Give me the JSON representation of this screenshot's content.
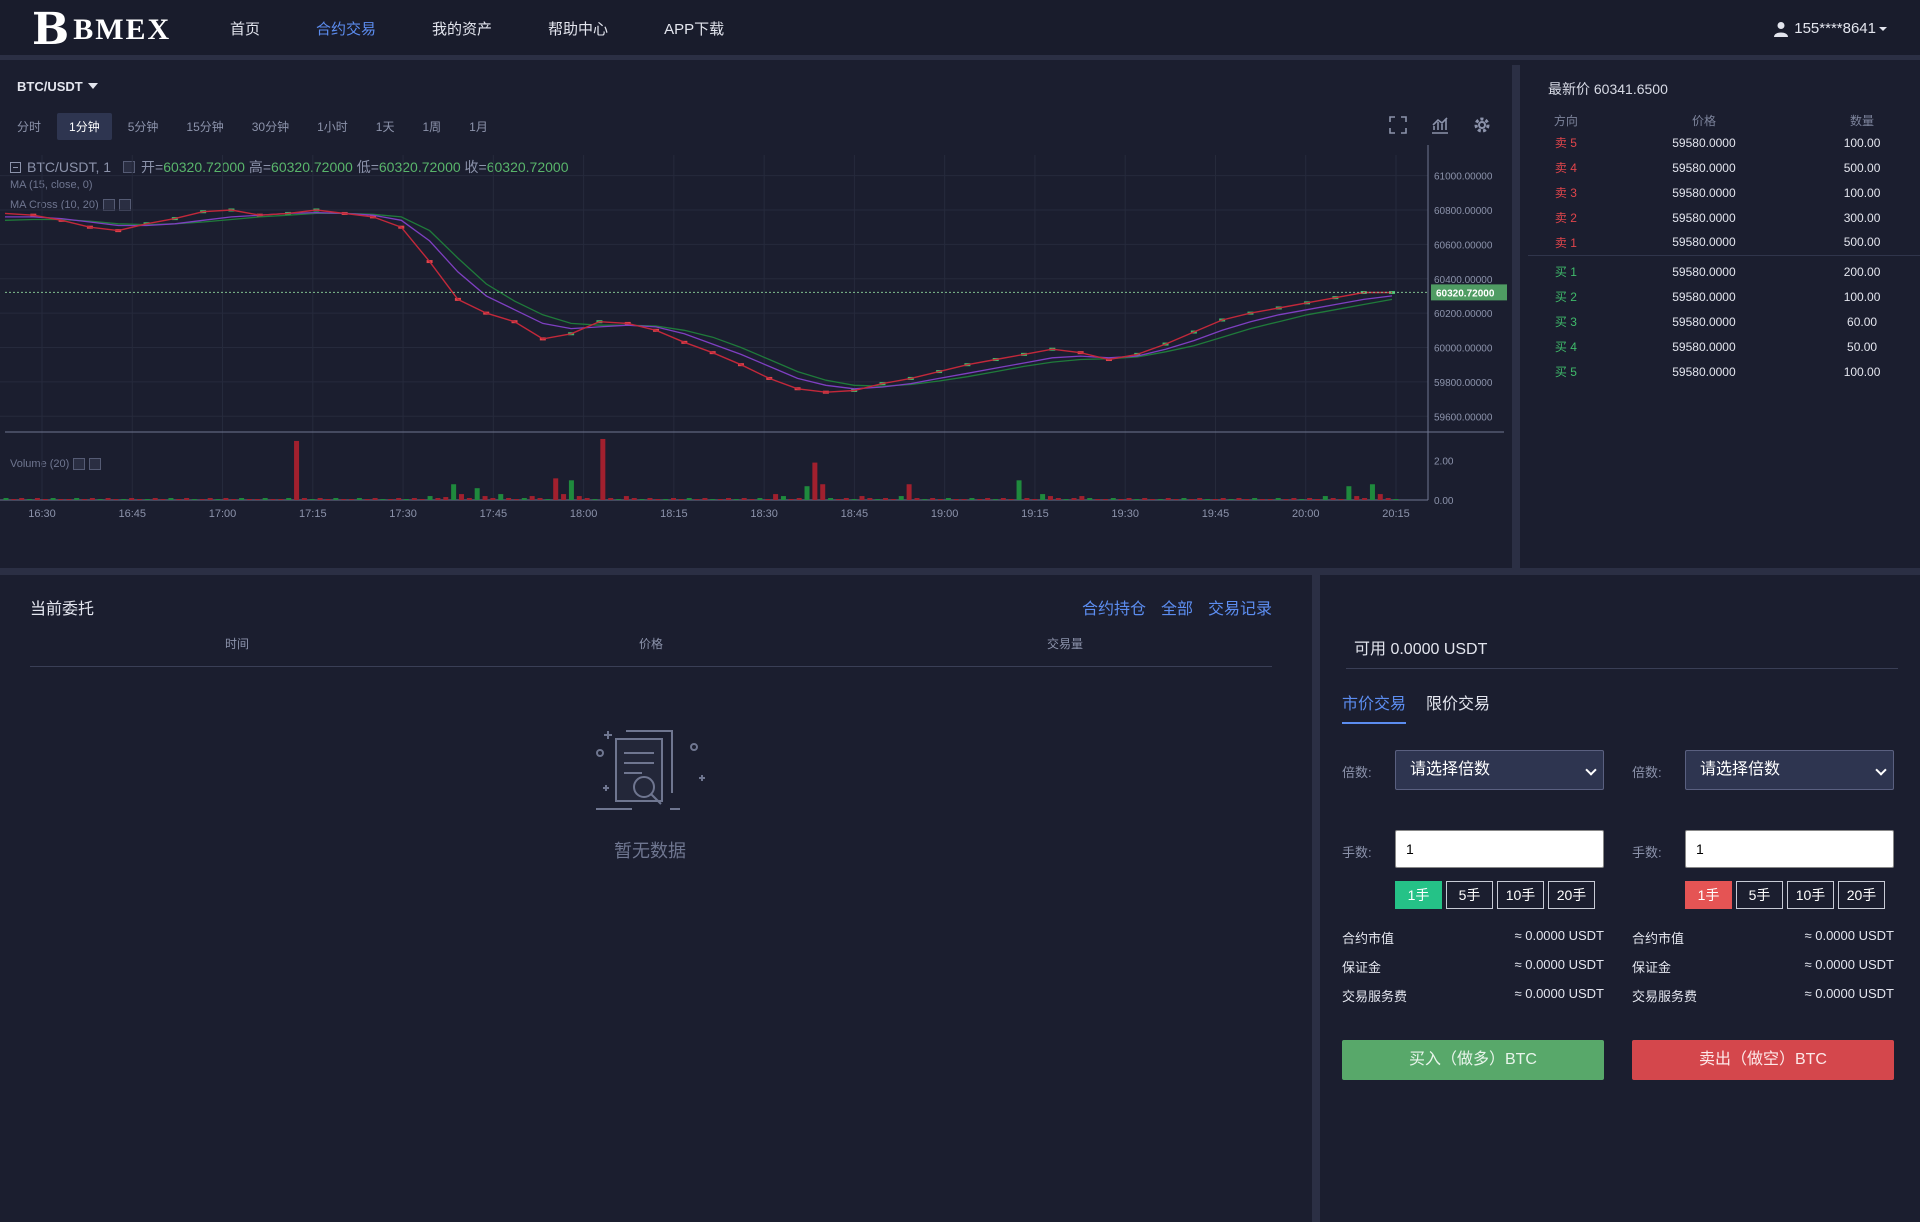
{
  "header": {
    "logo_mark": "B",
    "logo_text": "BMEX",
    "nav": [
      {
        "label": "首页",
        "active": false
      },
      {
        "label": "合约交易",
        "active": true
      },
      {
        "label": "我的资产",
        "active": false
      },
      {
        "label": "帮助中心",
        "active": false
      },
      {
        "label": "APP下载",
        "active": false
      }
    ],
    "user": "155****8641"
  },
  "chart_panel": {
    "pair": "BTC/USDT",
    "timeframes": [
      "分时",
      "1分钟",
      "5分钟",
      "15分钟",
      "30分钟",
      "1小时",
      "1天",
      "1周",
      "1月"
    ],
    "active_timeframe": "1分钟",
    "tools": [
      "fullscreen-icon",
      "indicator-icon",
      "gear-icon"
    ],
    "legend": {
      "symbol": "BTC/USDT, 1",
      "open_label": "开=",
      "open": "60320.72000",
      "high_label": "高=",
      "high": "60320.72000",
      "low_label": "低=",
      "low": "60320.72000",
      "close_label": "收=",
      "close": "60320.72000",
      "ma": "MA (15, close, 0)",
      "ma_cross": "MA Cross (10, 20)",
      "volume": "Volume (20)"
    }
  },
  "chart_data": {
    "type": "line",
    "title": "BTC/USDT, 1",
    "x_ticks": [
      "16:30",
      "16:45",
      "17:00",
      "17:15",
      "17:30",
      "17:45",
      "18:00",
      "18:15",
      "18:30",
      "18:45",
      "19:00",
      "19:15",
      "19:30",
      "19:45",
      "20:00",
      "20:15"
    ],
    "y_ticks": [
      "61000.00000",
      "60800.00000",
      "60600.00000",
      "60400.00000",
      "60200.00000",
      "60000.00000",
      "59800.00000",
      "59600.00000"
    ],
    "ylim": [
      59520,
      61120
    ],
    "last_price_label": "60320.72000",
    "last_price": 60320.72,
    "price_series": [
      60780,
      60770,
      60740,
      60700,
      60680,
      60720,
      60750,
      60790,
      60800,
      60770,
      60780,
      60800,
      60780,
      60760,
      60700,
      60500,
      60280,
      60200,
      60150,
      60050,
      60080,
      60150,
      60140,
      60100,
      60030,
      59970,
      59900,
      59820,
      59760,
      59740,
      59750,
      59790,
      59820,
      59860,
      59900,
      59930,
      59960,
      59990,
      59970,
      59930,
      59960,
      60020,
      60090,
      60160,
      60200,
      60230,
      60260,
      60290,
      60320,
      60320
    ],
    "ma_series": [
      60760,
      60760,
      60750,
      60730,
      60710,
      60710,
      60720,
      60740,
      60760,
      60770,
      60780,
      60785,
      60780,
      60770,
      60740,
      60620,
      60440,
      60300,
      60220,
      60140,
      60110,
      60120,
      60130,
      60120,
      60080,
      60020,
      59960,
      59890,
      59820,
      59780,
      59760,
      59770,
      59790,
      59820,
      59850,
      59880,
      59910,
      59940,
      59950,
      59940,
      59950,
      59990,
      60040,
      60100,
      60150,
      60190,
      60220,
      60250,
      60280,
      60300
    ],
    "ma_cross_series": [
      60740,
      60745,
      60745,
      60735,
      60720,
      60715,
      60720,
      60730,
      60745,
      60760,
      60770,
      60780,
      60780,
      60775,
      60760,
      60680,
      60520,
      60370,
      60270,
      60190,
      60140,
      60130,
      60130,
      60125,
      60100,
      60060,
      60000,
      59930,
      59860,
      59810,
      59780,
      59775,
      59785,
      59805,
      59830,
      59860,
      59890,
      59915,
      59930,
      59935,
      59945,
      59975,
      60010,
      60060,
      60110,
      60150,
      60190,
      60220,
      60250,
      60280
    ],
    "volume_ticks": [
      "2.00",
      "0.00"
    ],
    "volume_ylim": [
      0,
      3.2
    ],
    "volume": [
      0.1,
      0.05,
      0.1,
      0.05,
      0.1,
      0.05,
      0.1,
      0.05,
      0.05,
      0.1,
      0.05,
      0.1,
      0.05,
      0.1,
      0.05,
      0.05,
      0.1,
      0.05,
      0.05,
      0.1,
      0.05,
      0.1,
      0.05,
      0.1,
      0.05,
      0.05,
      0.1,
      0.05,
      0.1,
      0.05,
      0.1,
      0.05,
      0.05,
      0.1,
      0.05,
      0.05,
      0.1,
      3.0,
      0.1,
      0.05,
      0.1,
      0.05,
      0.1,
      0.05,
      0.05,
      0.1,
      0.05,
      0.1,
      0.05,
      0.05,
      0.1,
      0.05,
      0.1,
      0.05,
      0.2,
      0.1,
      0.15,
      0.8,
      0.3,
      0.1,
      0.6,
      0.2,
      0.1,
      0.3,
      0.1,
      0.05,
      0.1,
      0.2,
      0.1,
      0.05,
      1.1,
      0.3,
      1.0,
      0.2,
      0.1,
      0.05,
      3.1,
      0.1,
      0.05,
      0.2,
      0.1,
      0.05,
      0.1,
      0.05,
      0.05,
      0.1,
      0.05,
      0.1,
      0.05,
      0.1,
      0.05,
      0.05,
      0.1,
      0.05,
      0.1,
      0.05,
      0.1,
      0.05,
      0.3,
      0.2,
      0.05,
      0.1,
      0.7,
      1.9,
      0.8,
      0.1,
      0.05,
      0.1,
      0.05,
      0.2,
      0.1,
      0.05,
      0.1,
      0.05,
      0.2,
      0.8,
      0.1,
      0.05,
      0.1,
      0.05,
      0.1,
      0.05,
      0.05,
      0.1,
      0.05,
      0.1,
      0.05,
      0.1,
      0.05,
      1.0,
      0.1,
      0.05,
      0.3,
      0.2,
      0.1,
      0.05,
      0.1,
      0.2,
      0.1,
      0.05,
      0.05,
      0.1,
      0.05,
      0.1,
      0.05,
      0.1,
      0.05,
      0.05,
      0.1,
      0.05,
      0.1,
      0.05,
      0.1,
      0.05,
      0.05,
      0.1,
      0.05,
      0.1,
      0.05,
      0.1,
      0.05,
      0.05,
      0.1,
      0.05,
      0.1,
      0.05,
      0.1,
      0.05,
      0.2,
      0.1,
      0.05,
      0.7,
      0.2,
      0.1,
      0.8,
      0.3,
      0.1,
      0.05
    ]
  },
  "order_book": {
    "last_label": "最新价",
    "last": "60341.6500",
    "headers": [
      "方向",
      "价格",
      "数量"
    ],
    "asks": [
      {
        "side": "卖 5",
        "price": "59580.0000",
        "qty": "100.00"
      },
      {
        "side": "卖 4",
        "price": "59580.0000",
        "qty": "500.00"
      },
      {
        "side": "卖 3",
        "price": "59580.0000",
        "qty": "100.00"
      },
      {
        "side": "卖 2",
        "price": "59580.0000",
        "qty": "300.00"
      },
      {
        "side": "卖 1",
        "price": "59580.0000",
        "qty": "500.00"
      }
    ],
    "bids": [
      {
        "side": "买 1",
        "price": "59580.0000",
        "qty": "200.00"
      },
      {
        "side": "买 2",
        "price": "59580.0000",
        "qty": "100.00"
      },
      {
        "side": "买 3",
        "price": "59580.0000",
        "qty": "60.00"
      },
      {
        "side": "买 4",
        "price": "59580.0000",
        "qty": "50.00"
      },
      {
        "side": "买 5",
        "price": "59580.0000",
        "qty": "100.00"
      }
    ]
  },
  "orders": {
    "title": "当前委托",
    "links": [
      "合约持仓",
      "全部",
      "交易记录"
    ],
    "headers": [
      "时间",
      "价格",
      "交易量"
    ],
    "empty": "暂无数据"
  },
  "trade": {
    "available": "可用 0.0000 USDT",
    "tabs": [
      "市价交易",
      "限价交易"
    ],
    "buy": {
      "leverage_label": "倍数:",
      "leverage_placeholder": "请选择倍数",
      "lots_label": "手数:",
      "lots_value": "1",
      "quick": [
        "1手",
        "5手",
        "10手",
        "20手"
      ],
      "info": [
        {
          "k": "合约市值",
          "v": "≈ 0.0000 USDT"
        },
        {
          "k": "保证金",
          "v": "≈ 0.0000 USDT"
        },
        {
          "k": "交易服务费",
          "v": "≈ 0.0000 USDT"
        }
      ],
      "button": "买入（做多）BTC"
    },
    "sell": {
      "leverage_label": "倍数:",
      "leverage_placeholder": "请选择倍数",
      "lots_label": "手数:",
      "lots_value": "1",
      "quick": [
        "1手",
        "5手",
        "10手",
        "20手"
      ],
      "info": [
        {
          "k": "合约市值",
          "v": "≈ 0.0000 USDT"
        },
        {
          "k": "保证金",
          "v": "≈ 0.0000 USDT"
        },
        {
          "k": "交易服务费",
          "v": "≈ 0.0000 USDT"
        }
      ],
      "button": "卖出（做空）BTC"
    }
  },
  "colors": {
    "accent": "#5c8df0",
    "buy": "#25c287",
    "sell": "#e55454",
    "bg": "#1b1e2f"
  }
}
